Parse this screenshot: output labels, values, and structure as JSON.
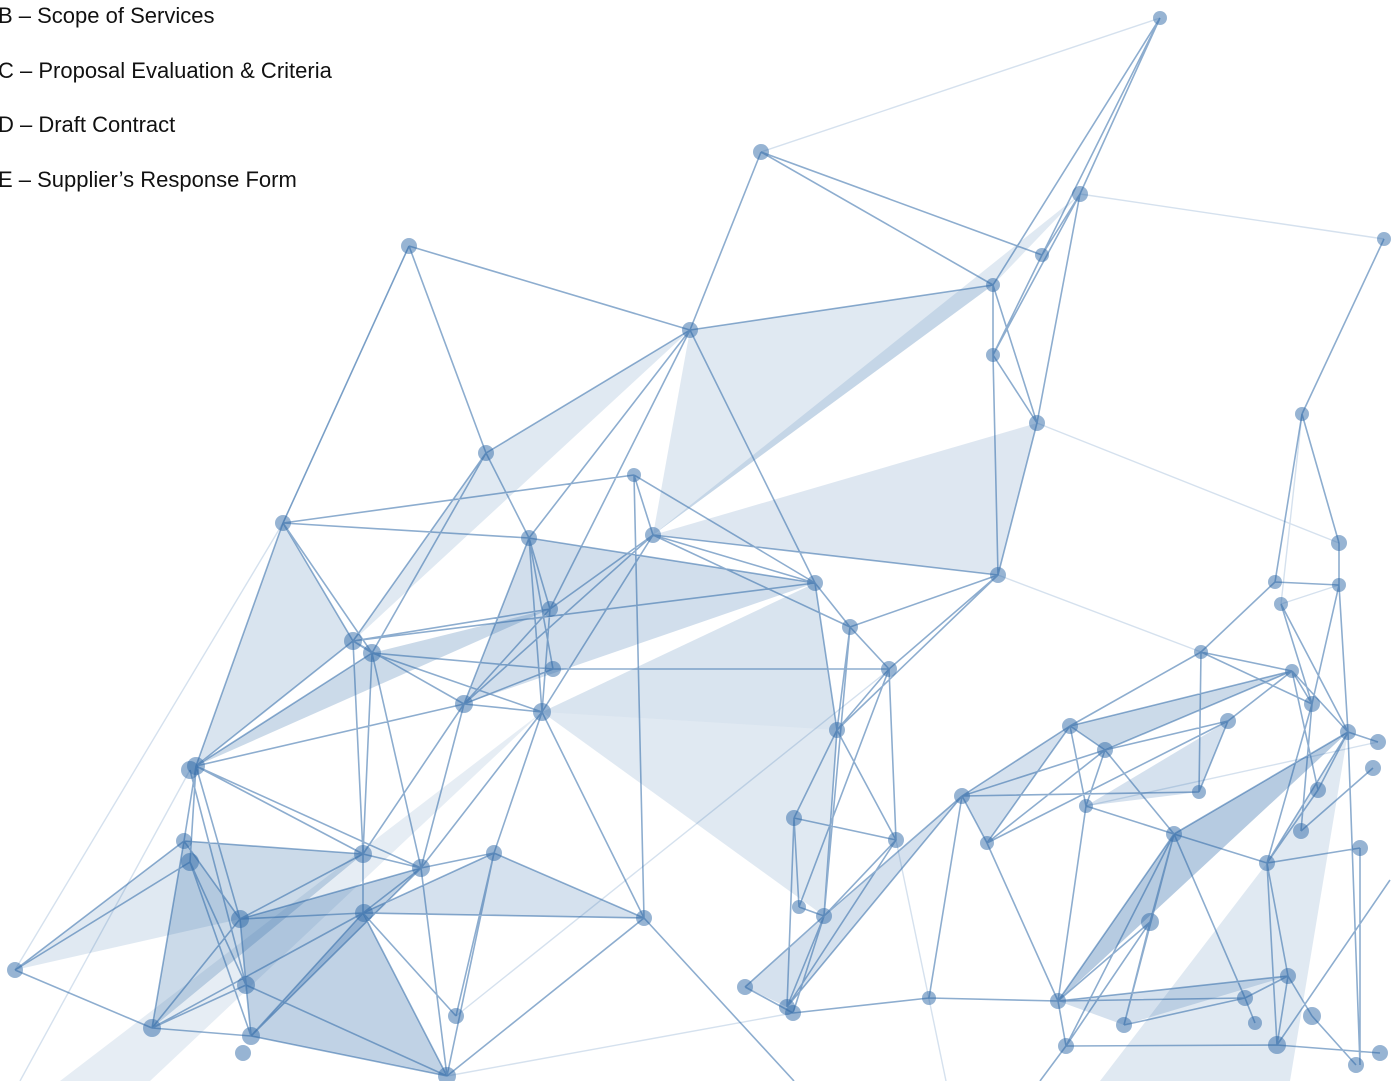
{
  "items": [
    "B – Scope of Services",
    "C – Proposal Evaluation & Criteria",
    "D – Draft Contract",
    "E – Supplier’s Response Form"
  ]
}
